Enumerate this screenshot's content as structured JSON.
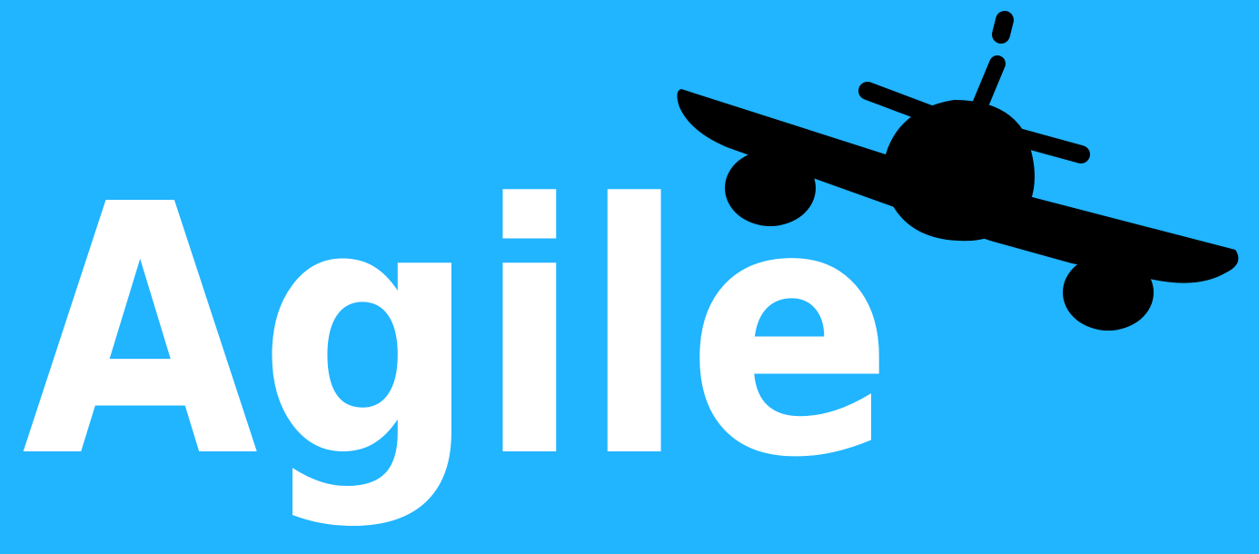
{
  "brand": {
    "word": "Agile",
    "background_color": "#21b4ff",
    "text_color": "#ffffff",
    "plane_color": "#000000",
    "icon": "airplane-icon"
  }
}
